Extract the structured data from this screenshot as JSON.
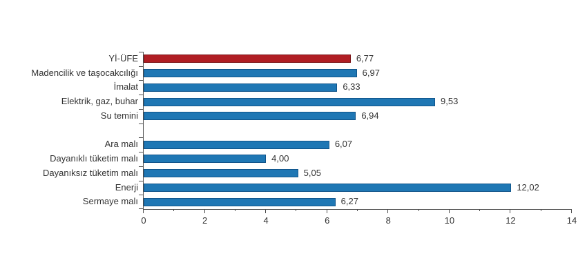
{
  "chart_data": {
    "type": "bar",
    "orientation": "horizontal",
    "title": "",
    "xlabel": "",
    "ylabel": "",
    "xlim": [
      0,
      14
    ],
    "x_major_ticks": [
      0,
      2,
      4,
      6,
      8,
      10,
      12,
      14
    ],
    "x_minor_ticks": [
      1,
      3,
      5,
      7,
      9,
      11,
      13
    ],
    "grid": false,
    "legend": false,
    "highlight_index": 0,
    "categories": [
      "Yİ-ÜFE",
      "Madencilik ve taşocakcılığı",
      "İmalat",
      "Elektrik, gaz, buhar",
      "Su temini",
      "",
      "Ara malı",
      "Dayanıklı tüketim malı",
      "Dayanıksız tüketim malı",
      "Enerji",
      "Sermaye malı"
    ],
    "values": [
      6.77,
      6.97,
      6.33,
      9.53,
      6.94,
      null,
      6.07,
      4.0,
      5.05,
      12.02,
      6.27
    ],
    "value_labels": [
      "6,77",
      "6,97",
      "6,33",
      "9,53",
      "6,94",
      null,
      "6,07",
      "4,00",
      "5,05",
      "12,02",
      "6,27"
    ]
  },
  "colors": {
    "bar_default": "#1f77b4",
    "bar_default_border": "#10548a",
    "bar_highlight": "#b01e24",
    "bar_highlight_border": "#7a1114",
    "axis_line": "#4d4d4d",
    "text": "#333333",
    "background": "#ffffff"
  }
}
